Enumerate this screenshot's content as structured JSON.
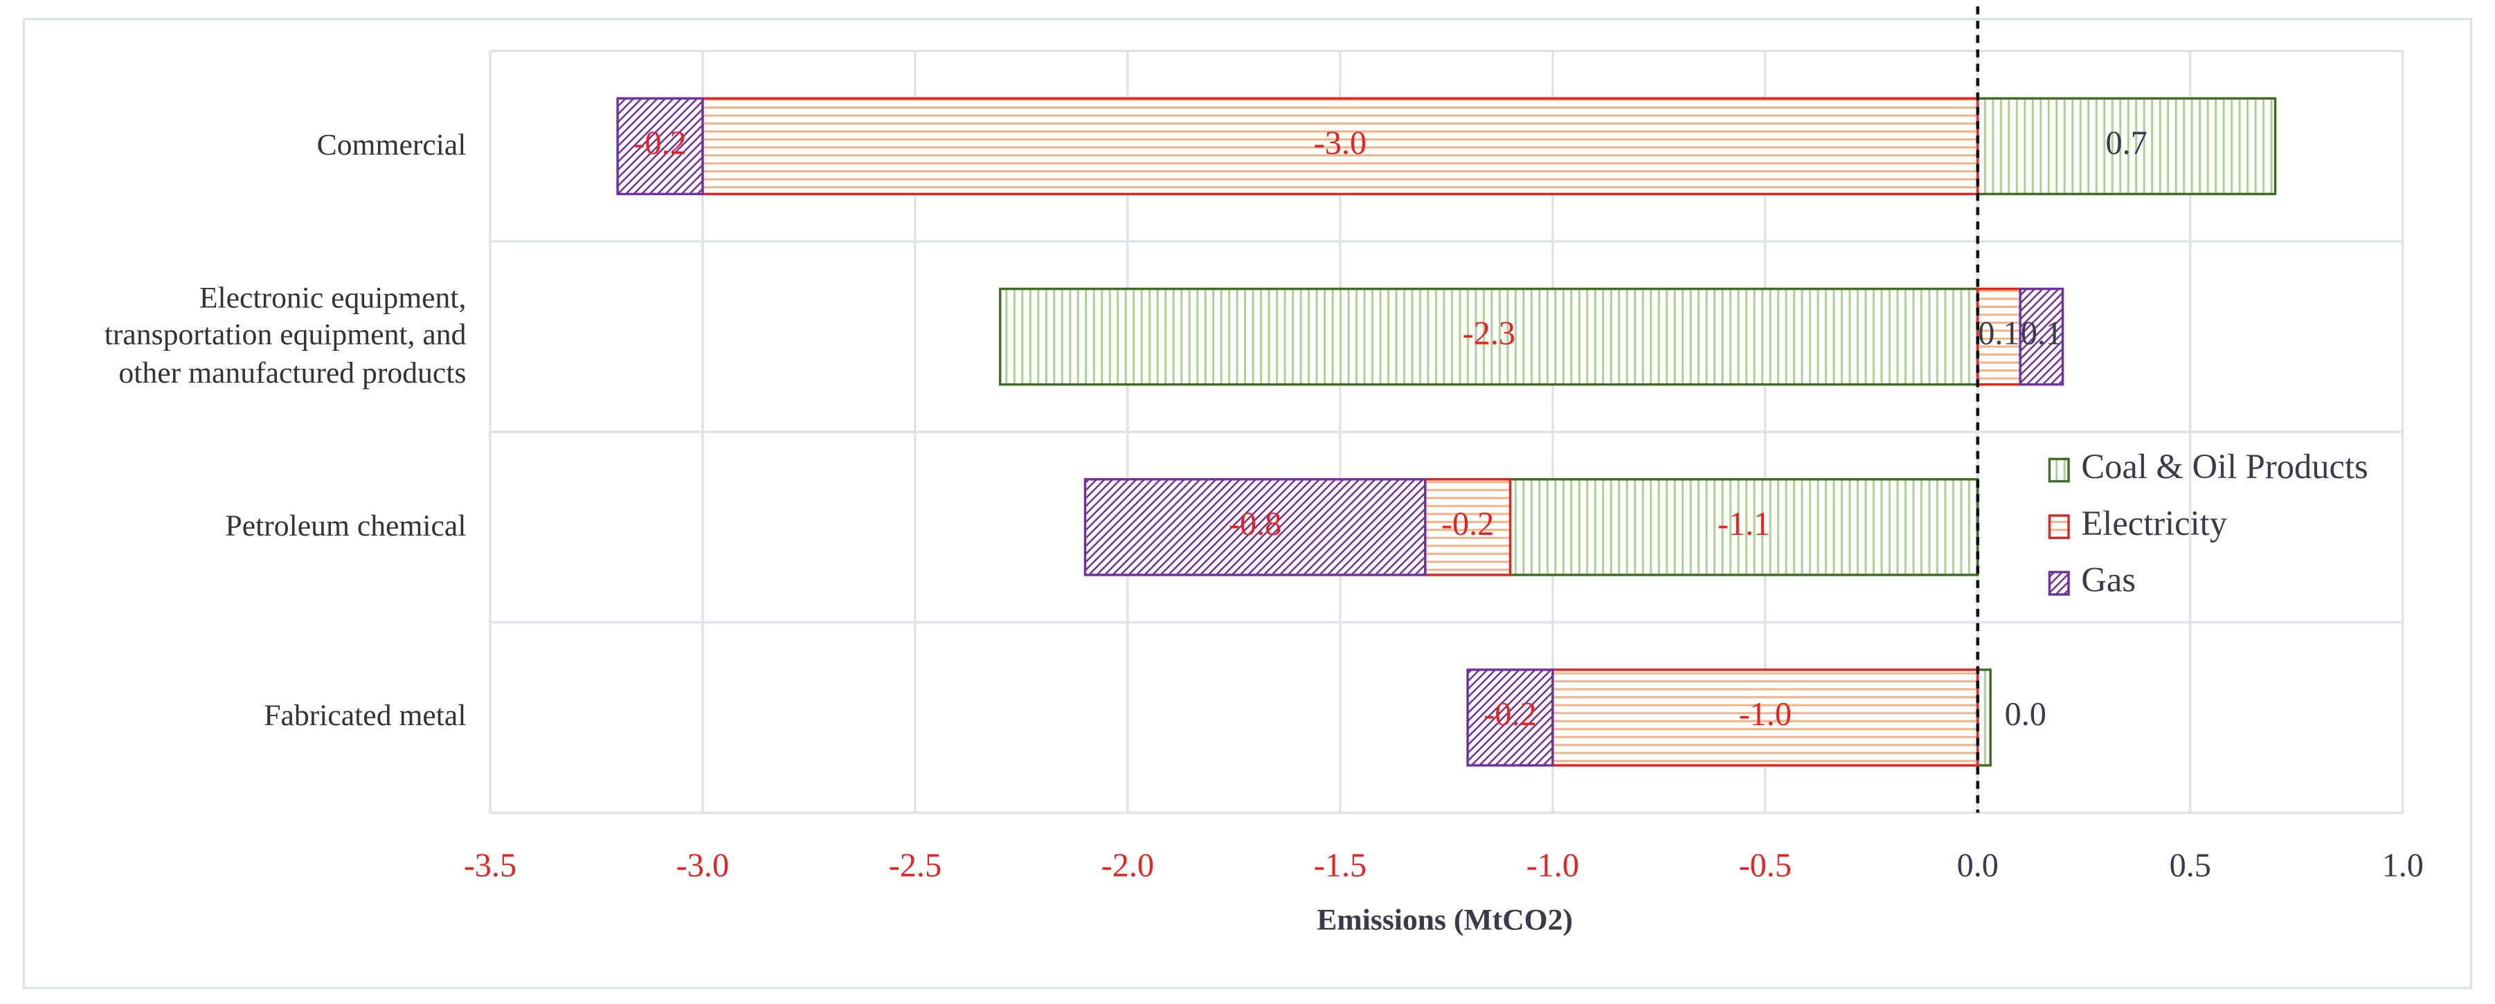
{
  "chart_data": {
    "type": "bar",
    "orientation": "horizontal",
    "stacked": true,
    "categories": [
      "Commercial",
      "Electronic equipment, transportation equipment, and other manufactured products",
      "Petroleum chemical",
      "Fabricated metal"
    ],
    "series": [
      {
        "name": "Coal & Oil Products",
        "color": "#3f6b22",
        "hatch": "vertical",
        "hatch_color": "#a9d18e",
        "values": [
          0.7,
          -2.3,
          -1.1,
          0.03
        ],
        "value_labels": [
          "0.7",
          "-2.3",
          "-1.1",
          "0.0"
        ]
      },
      {
        "name": "Electricity",
        "color": "#e8231f",
        "hatch": "horizontal",
        "hatch_color": "#f4b183",
        "values": [
          -3,
          0.1,
          -0.2,
          -1
        ],
        "value_labels": [
          "-3.0",
          "0.1",
          "-0.2",
          "-1.0"
        ]
      },
      {
        "name": "Gas",
        "color": "#7030a0",
        "hatch": "diagonal",
        "hatch_color": "#7030a0",
        "values": [
          -0.2,
          0.1,
          -0.8,
          -0.2
        ],
        "value_labels": [
          "-0.2",
          "0.1",
          "-0.8",
          "-0.2"
        ]
      }
    ],
    "x_label": "Emissions (MtCO2)",
    "xlim": [
      -3.5,
      1
    ],
    "xticks": [
      -3.5,
      {
        "value": -3,
        "label": "-3.0"
      },
      -2.5,
      {
        "value": -2,
        "label": "-2.0"
      },
      -1.5,
      {
        "value": -1,
        "label": "-1.0"
      },
      -0.5,
      {
        "value": 0,
        "label": "0.0"
      },
      0.5,
      {
        "value": 1,
        "label": "1.0"
      }
    ],
    "grid": true,
    "legend": "right",
    "negative_color": "#e8231f",
    "positive_color": "#3a3a4a"
  }
}
